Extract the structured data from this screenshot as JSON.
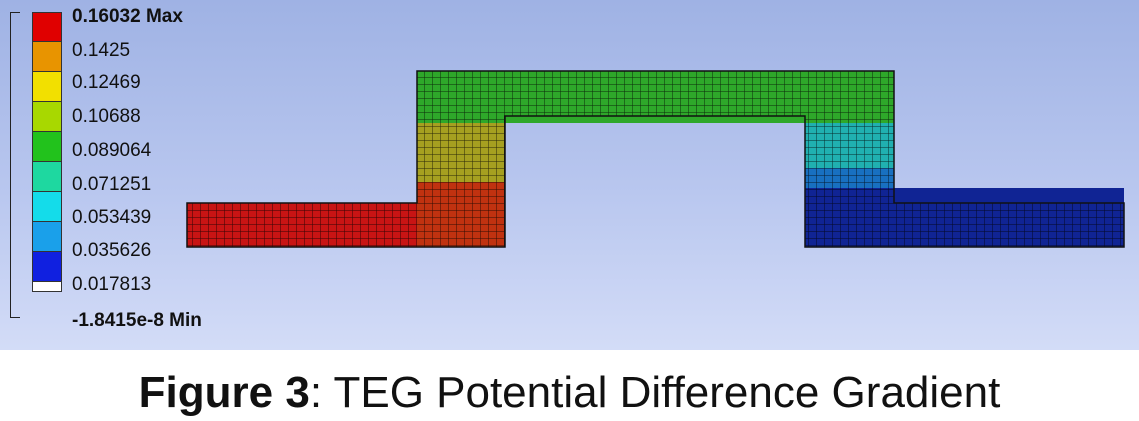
{
  "legend": {
    "max_label": "0.16032 Max",
    "min_label": "-1.8415e-8 Min",
    "levels": [
      "0.1425",
      "0.12469",
      "0.10688",
      "0.089064",
      "0.071251",
      "0.053439",
      "0.035626",
      "0.017813"
    ],
    "colors": [
      "#e00000",
      "#e89400",
      "#f2e000",
      "#a8d800",
      "#22c21c",
      "#1ed8a0",
      "#14dcea",
      "#1aa0ea",
      "#1020e0",
      "#ffffff"
    ]
  },
  "mesh": {
    "region_colors": {
      "left_foot": "#c81414",
      "left_leg_bottom": "#c03210",
      "left_leg_middle": "#a6a020",
      "bridge": "#2ea82a",
      "right_leg_middle": "#20b0b0",
      "right_leg_lower": "#1870c0",
      "right_foot": "#102494"
    }
  },
  "caption": {
    "label": "Figure 3",
    "text": ": TEG Potential Difference Gradient"
  }
}
